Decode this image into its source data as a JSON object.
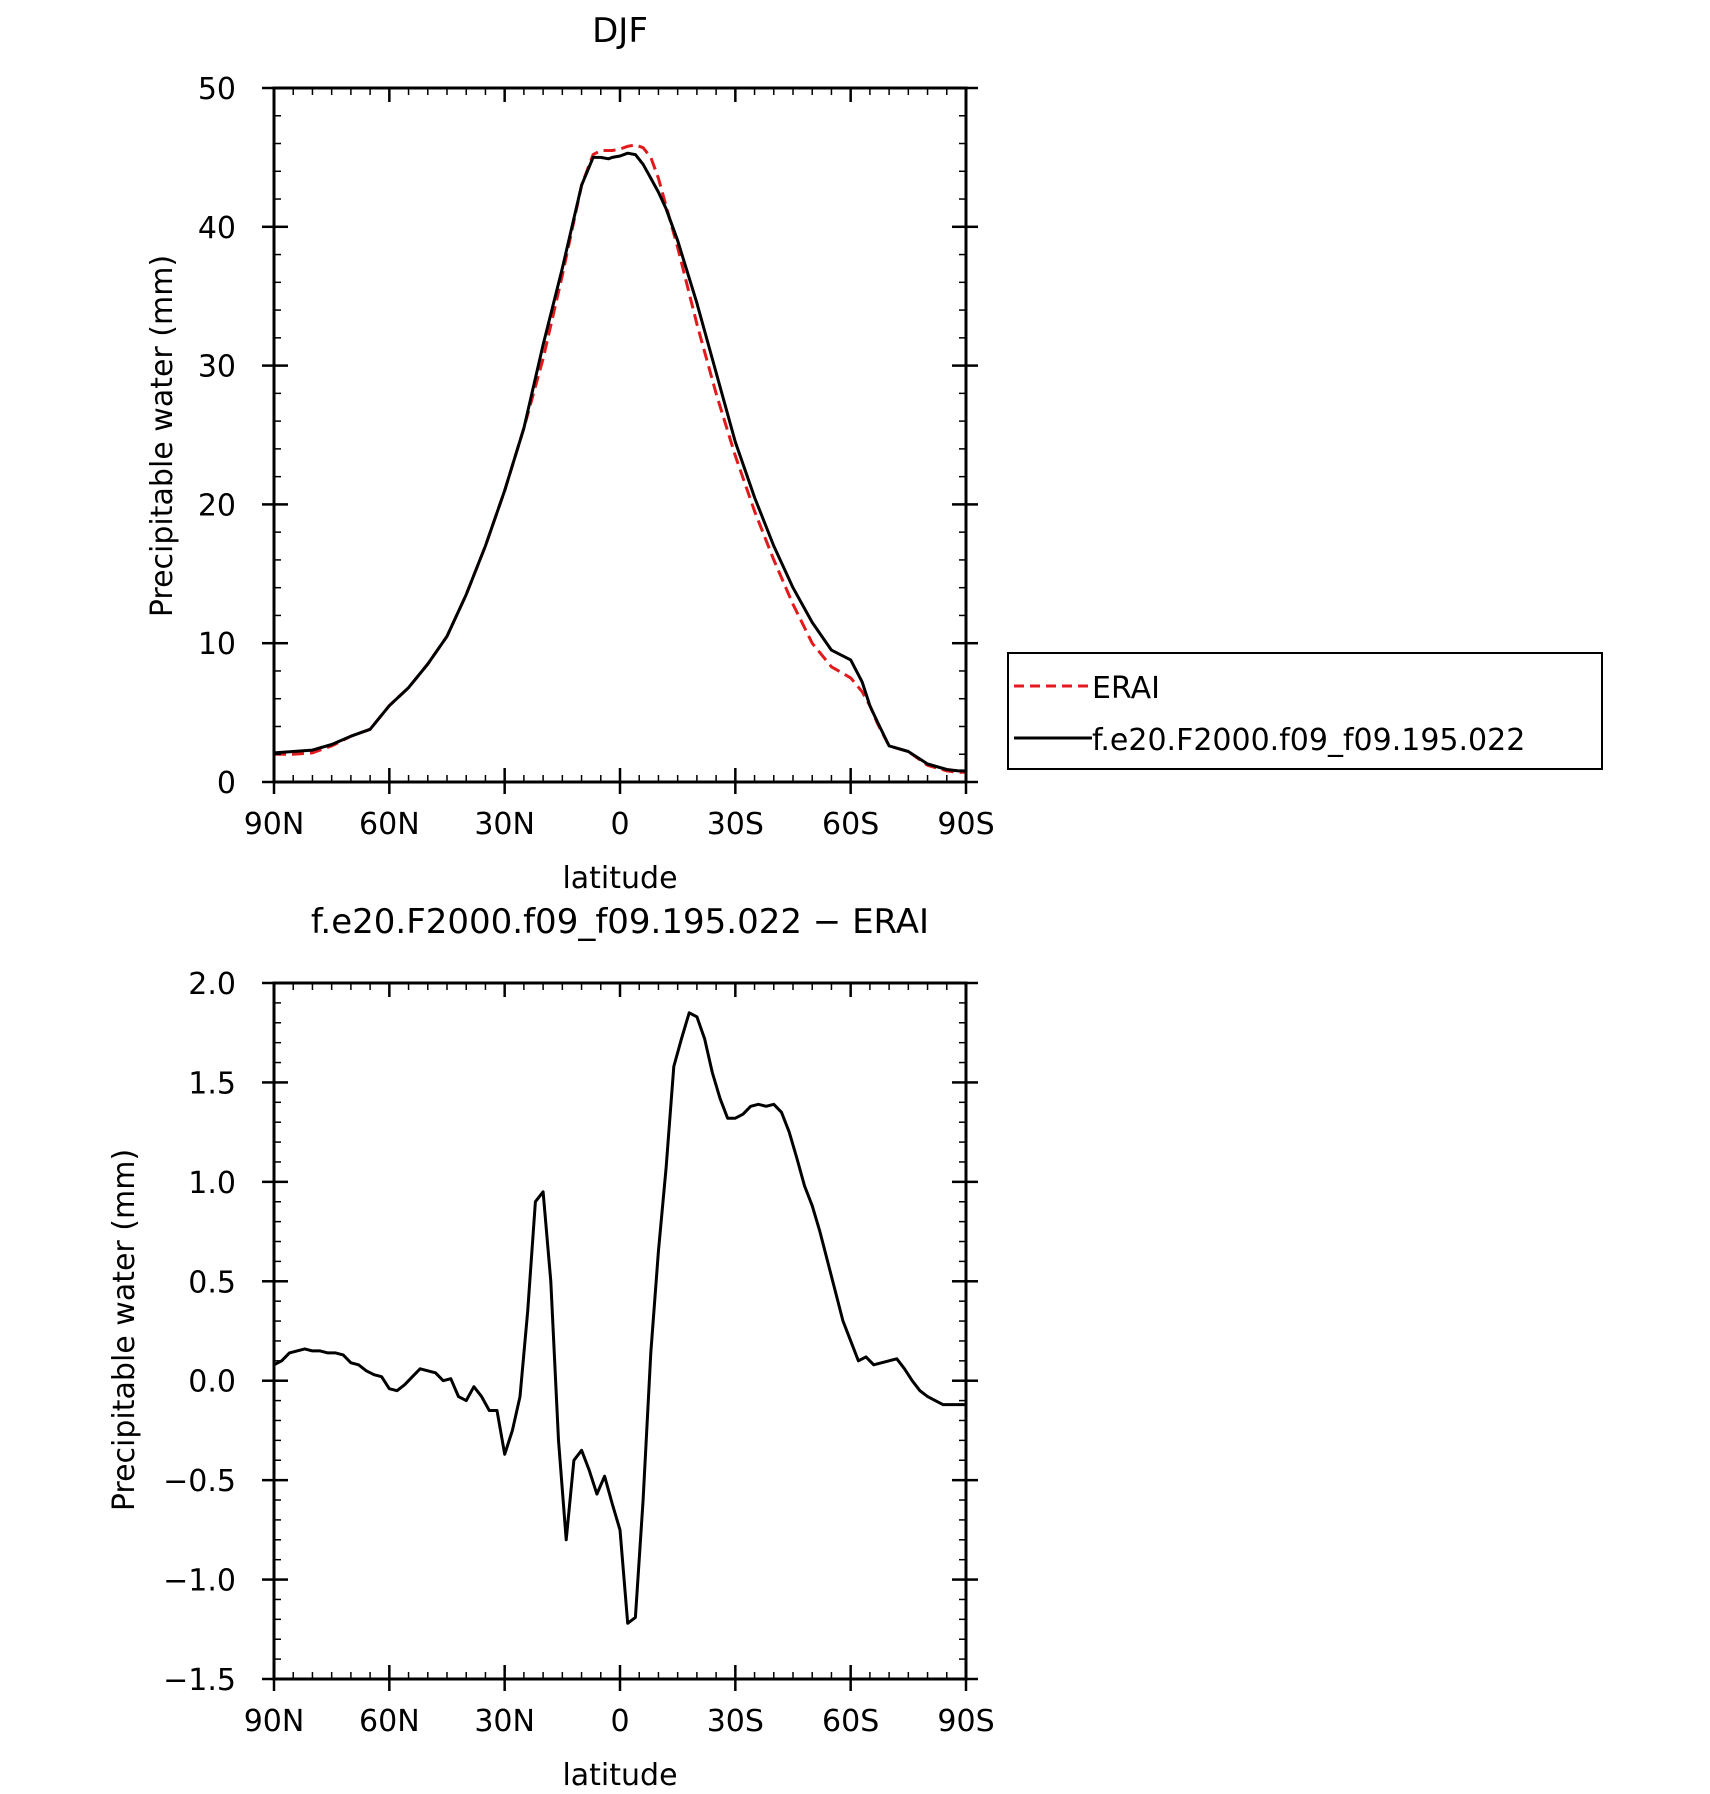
{
  "chart_data": [
    {
      "type": "line",
      "title": "DJF",
      "xlabel": "latitude",
      "ylabel": "Precipitable water (mm)",
      "xlim": [
        90,
        -90
      ],
      "ylim": [
        0,
        50
      ],
      "xticks": [
        90,
        60,
        30,
        0,
        -30,
        -60,
        -90
      ],
      "xtick_labels": [
        "90N",
        "60N",
        "30N",
        "0",
        "30S",
        "60S",
        "90S"
      ],
      "yticks": [
        0,
        10,
        20,
        30,
        40,
        50
      ],
      "ytick_labels": [
        "0",
        "10",
        "20",
        "30",
        "40",
        "50"
      ],
      "legend": {
        "placement": "right",
        "entries": [
          "ERAI",
          "f.e20.F2000.f09_f09.195.022"
        ]
      },
      "series": [
        {
          "name": "ERAI",
          "color": "#e31a1c",
          "dash": "dashed",
          "x": [
            90,
            85,
            80,
            75,
            70,
            65,
            60,
            55,
            50,
            45,
            40,
            35,
            30,
            25,
            20,
            15,
            10,
            7,
            5,
            3,
            2,
            0,
            -2,
            -4,
            -6,
            -8,
            -10,
            -12,
            -15,
            -20,
            -25,
            -30,
            -35,
            -40,
            -45,
            -50,
            -55,
            -60,
            -63,
            -65,
            -67,
            -70,
            -75,
            -80,
            -85,
            -88,
            -90
          ],
          "values": [
            2.0,
            2.0,
            2.1,
            2.6,
            3.3,
            3.8,
            5.5,
            6.8,
            8.5,
            10.5,
            13.5,
            17.0,
            21.0,
            25.5,
            30.5,
            36.5,
            43.0,
            45.2,
            45.5,
            45.5,
            45.5,
            45.6,
            45.8,
            45.9,
            45.7,
            45.0,
            43.5,
            41.5,
            38.5,
            33.0,
            28.0,
            23.5,
            19.5,
            16.0,
            12.8,
            10.0,
            8.3,
            7.5,
            6.5,
            5.5,
            4.2,
            2.6,
            2.2,
            1.2,
            0.8,
            0.7,
            0.7
          ]
        },
        {
          "name": "f.e20.F2000.f09_f09.195.022",
          "color": "#000000",
          "dash": "solid",
          "x": [
            90,
            85,
            80,
            75,
            70,
            65,
            60,
            55,
            50,
            45,
            40,
            35,
            30,
            25,
            20,
            15,
            10,
            7,
            5,
            3,
            2,
            0,
            -2,
            -4,
            -6,
            -8,
            -10,
            -12,
            -15,
            -20,
            -25,
            -30,
            -35,
            -40,
            -45,
            -50,
            -55,
            -60,
            -63,
            -65,
            -67,
            -70,
            -75,
            -80,
            -85,
            -88,
            -90
          ],
          "values": [
            2.1,
            2.2,
            2.3,
            2.7,
            3.3,
            3.8,
            5.5,
            6.8,
            8.5,
            10.5,
            13.5,
            17.0,
            21.0,
            25.5,
            31.5,
            37.0,
            43.0,
            45.0,
            45.0,
            44.9,
            45.0,
            45.1,
            45.3,
            45.2,
            44.5,
            43.5,
            42.5,
            41.3,
            39.0,
            34.5,
            29.5,
            24.5,
            20.5,
            17.0,
            14.0,
            11.5,
            9.5,
            8.8,
            7.2,
            5.5,
            4.3,
            2.6,
            2.2,
            1.3,
            0.9,
            0.8,
            0.8
          ]
        }
      ]
    },
    {
      "type": "line",
      "title": "f.e20.F2000.f09_f09.195.022 − ERAI",
      "xlabel": "latitude",
      "ylabel": "Precipitable water (mm)",
      "xlim": [
        90,
        -90
      ],
      "ylim": [
        -1.5,
        2.0
      ],
      "xticks": [
        90,
        60,
        30,
        0,
        -30,
        -60,
        -90
      ],
      "xtick_labels": [
        "90N",
        "60N",
        "30N",
        "0",
        "30S",
        "60S",
        "90S"
      ],
      "yticks": [
        -1.5,
        -1.0,
        -0.5,
        0.0,
        0.5,
        1.0,
        1.5,
        2.0
      ],
      "ytick_labels": [
        "−1.5",
        "−1.0",
        "−0.5",
        "0.0",
        "0.5",
        "1.0",
        "1.5",
        "2.0"
      ],
      "series": [
        {
          "color": "#000000",
          "dash": "solid",
          "x": [
            90,
            88,
            86,
            84,
            82,
            80,
            78,
            76,
            74,
            72,
            70,
            68,
            66,
            64,
            62,
            60,
            58,
            56,
            54,
            52,
            50,
            48,
            46,
            44,
            42,
            40,
            38,
            36,
            34,
            32,
            30,
            28,
            26,
            24,
            22,
            20,
            18,
            16,
            14,
            12,
            10,
            8,
            6,
            4,
            2,
            0,
            -2,
            -4,
            -6,
            -8,
            -10,
            -12,
            -14,
            -16,
            -18,
            -20,
            -22,
            -24,
            -26,
            -28,
            -30,
            -32,
            -34,
            -36,
            -38,
            -40,
            -42,
            -44,
            -46,
            -48,
            -50,
            -52,
            -54,
            -56,
            -58,
            -60,
            -62,
            -64,
            -66,
            -68,
            -70,
            -72,
            -74,
            -76,
            -78,
            -80,
            -82,
            -84,
            -86,
            -88,
            -90
          ],
          "values": [
            0.08,
            0.1,
            0.14,
            0.15,
            0.16,
            0.15,
            0.15,
            0.14,
            0.14,
            0.13,
            0.09,
            0.08,
            0.05,
            0.03,
            0.02,
            -0.04,
            -0.05,
            -0.02,
            0.02,
            0.06,
            0.05,
            0.04,
            0.0,
            0.01,
            -0.08,
            -0.1,
            -0.03,
            -0.08,
            -0.15,
            -0.15,
            -0.37,
            -0.25,
            -0.08,
            0.35,
            0.9,
            0.95,
            0.5,
            -0.3,
            -0.8,
            -0.4,
            -0.35,
            -0.45,
            -0.57,
            -0.48,
            -0.62,
            -0.75,
            -1.22,
            -1.19,
            -0.6,
            0.14,
            0.65,
            1.07,
            1.58,
            1.72,
            1.85,
            1.83,
            1.72,
            1.55,
            1.42,
            1.32,
            1.32,
            1.34,
            1.38,
            1.39,
            1.38,
            1.39,
            1.35,
            1.25,
            1.12,
            0.98,
            0.88,
            0.75,
            0.6,
            0.45,
            0.3,
            0.2,
            0.1,
            0.12,
            0.08,
            0.09,
            0.1,
            0.11,
            0.06,
            0.0,
            -0.05,
            -0.08,
            -0.1,
            -0.12,
            -0.12,
            -0.12,
            -0.12
          ]
        }
      ]
    }
  ]
}
